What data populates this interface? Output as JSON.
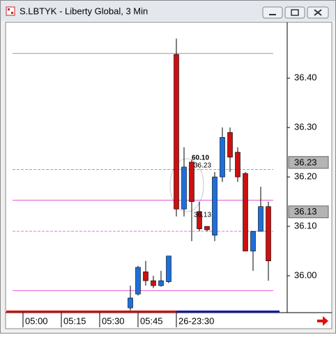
{
  "window": {
    "title": "S.LBTYK - Liberty Global, 3 Min"
  },
  "chart_data": {
    "type": "candlestick",
    "categories": [
      null,
      null,
      "05:00",
      null,
      null,
      null,
      null,
      "05:15",
      null,
      null,
      null,
      null,
      "05:30",
      null,
      null,
      null,
      null,
      "05:45",
      null,
      null,
      null,
      null,
      "26-23:30",
      null,
      null,
      null,
      null,
      null,
      null,
      null,
      null,
      null,
      null,
      null,
      null
    ],
    "open": [
      null,
      null,
      null,
      null,
      null,
      null,
      null,
      null,
      null,
      null,
      null,
      null,
      null,
      null,
      null,
      null,
      35.935,
      35.963,
      36.008,
      35.99,
      35.98,
      35.988,
      36.448,
      36.135,
      36.23,
      36.13,
      36.1,
      36.082,
      36.2,
      36.29,
      36.25,
      36.207,
      36.05,
      36.09,
      36.14
    ],
    "high": [
      null,
      null,
      null,
      null,
      null,
      null,
      null,
      null,
      null,
      null,
      null,
      null,
      null,
      null,
      null,
      null,
      35.98,
      36.02,
      36.03,
      36.0,
      36.01,
      36.04,
      36.48,
      36.26,
      36.235,
      36.15,
      36.1,
      36.21,
      36.3,
      36.3,
      36.26,
      36.21,
      36.09,
      36.18,
      36.15
    ],
    "low": [
      null,
      null,
      null,
      null,
      null,
      null,
      null,
      null,
      null,
      null,
      null,
      null,
      null,
      null,
      null,
      null,
      35.93,
      35.96,
      35.98,
      35.975,
      35.978,
      35.985,
      36.12,
      36.12,
      36.07,
      36.09,
      36.09,
      36.07,
      36.19,
      36.21,
      36.19,
      36.05,
      36.01,
      36.09,
      35.99
    ],
    "close": [
      null,
      null,
      null,
      null,
      null,
      null,
      null,
      null,
      null,
      null,
      null,
      null,
      null,
      null,
      null,
      null,
      35.955,
      36.017,
      35.99,
      35.98,
      35.99,
      36.04,
      36.135,
      36.22,
      36.15,
      36.095,
      36.093,
      36.2,
      36.28,
      36.24,
      36.2,
      36.05,
      36.09,
      36.14,
      36.03
    ],
    "up_color": "#1e6fd9",
    "down_color": "#cc1010",
    "ylim": [
      35.931,
      36.513
    ],
    "yticks": [
      {
        "value": 36.0,
        "label": "36.00"
      },
      {
        "value": 36.1,
        "label": "36.10"
      },
      {
        "value": 36.2,
        "label": "36.20"
      },
      {
        "value": 36.3,
        "label": "36.30"
      },
      {
        "value": 36.4,
        "label": "36.40"
      }
    ],
    "hlines": [
      {
        "value": 36.45,
        "color": "#999999",
        "style": "solid"
      },
      {
        "value": 36.215,
        "color": "#e07ad8",
        "style": "dashed"
      },
      {
        "value": 36.09,
        "color": "#e07ad8",
        "style": "dashed"
      },
      {
        "value": 36.153,
        "color": "#e05ad8",
        "style": "solid"
      },
      {
        "value": 35.97,
        "color": "#e05ad8",
        "style": "solid"
      }
    ],
    "markers": [
      36.23,
      36.13
    ],
    "annotation": "60.10"
  }
}
